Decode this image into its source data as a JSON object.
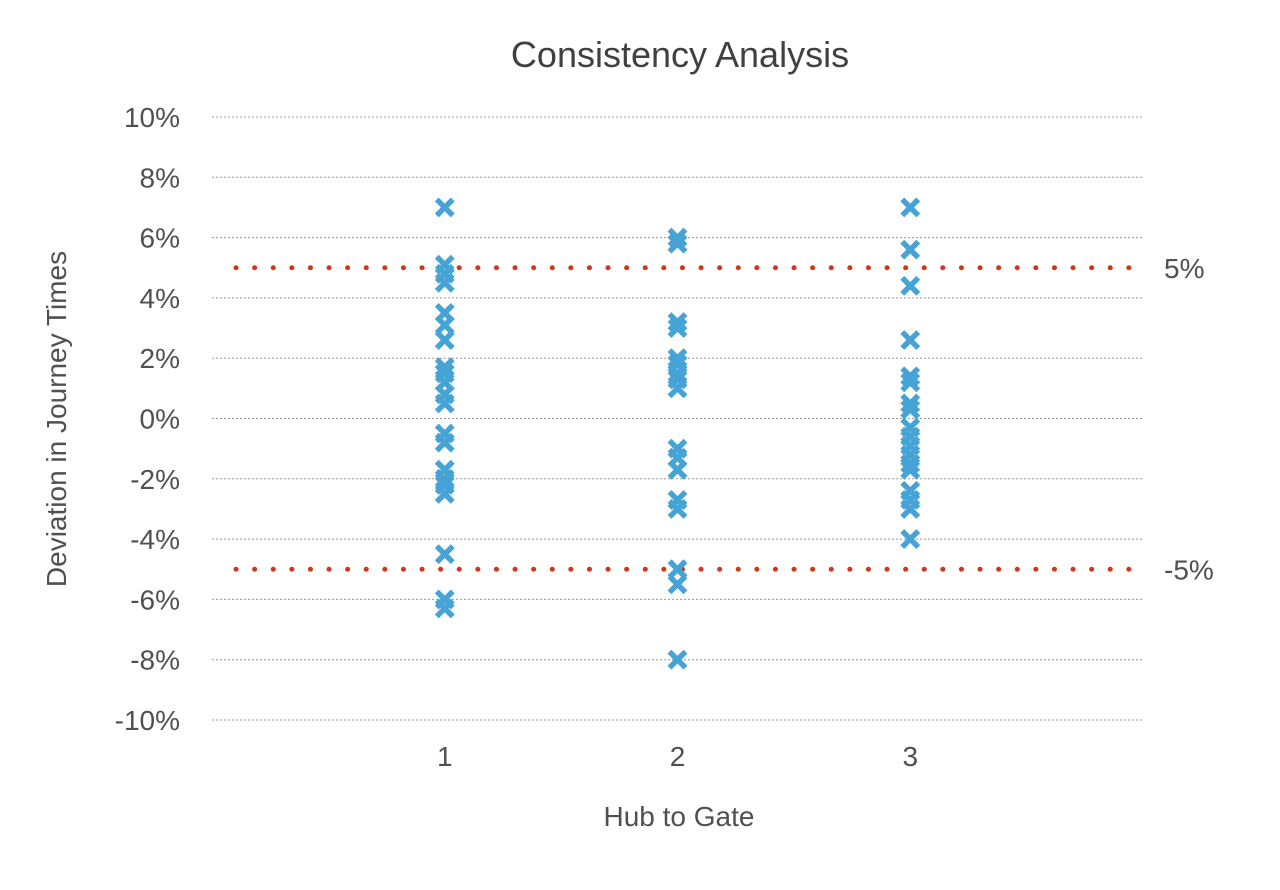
{
  "chart_data": {
    "type": "scatter",
    "title": "Consistency Analysis",
    "xlabel": "Hub to Gate",
    "ylabel": "Deviation in Journey Times",
    "xlim": [
      0,
      4
    ],
    "ylim": [
      -10,
      10
    ],
    "x_ticks": [
      "1",
      "2",
      "3"
    ],
    "y_ticks": [
      "10%",
      "8%",
      "6%",
      "4%",
      "2%",
      "0%",
      "-2%",
      "-4%",
      "-6%",
      "-8%",
      "-10%"
    ],
    "grid": true,
    "marker_color": "#46a3d6",
    "reference_color": "#cc3a1e",
    "reference_lines": [
      {
        "y": 5,
        "label": "5%"
      },
      {
        "y": -5,
        "label": "-5%"
      }
    ],
    "points": [
      {
        "x": 1,
        "y": 7.0
      },
      {
        "x": 1,
        "y": 5.1
      },
      {
        "x": 1,
        "y": 4.8
      },
      {
        "x": 1,
        "y": 4.5
      },
      {
        "x": 1,
        "y": 3.5
      },
      {
        "x": 1,
        "y": 3.1
      },
      {
        "x": 1,
        "y": 2.6
      },
      {
        "x": 1,
        "y": 1.7
      },
      {
        "x": 1,
        "y": 1.5
      },
      {
        "x": 1,
        "y": 1.2
      },
      {
        "x": 1,
        "y": 0.8
      },
      {
        "x": 1,
        "y": 0.5
      },
      {
        "x": 1,
        "y": -0.5
      },
      {
        "x": 1,
        "y": -0.8
      },
      {
        "x": 1,
        "y": -1.7
      },
      {
        "x": 1,
        "y": -2.0
      },
      {
        "x": 1,
        "y": -2.2
      },
      {
        "x": 1,
        "y": -2.5
      },
      {
        "x": 1,
        "y": -4.5
      },
      {
        "x": 1,
        "y": -6.0
      },
      {
        "x": 1,
        "y": -6.3
      },
      {
        "x": 2,
        "y": 6.0
      },
      {
        "x": 2,
        "y": 5.8
      },
      {
        "x": 2,
        "y": 3.2
      },
      {
        "x": 2,
        "y": 3.0
      },
      {
        "x": 2,
        "y": 2.0
      },
      {
        "x": 2,
        "y": 1.8
      },
      {
        "x": 2,
        "y": 1.5
      },
      {
        "x": 2,
        "y": 1.3
      },
      {
        "x": 2,
        "y": 1.0
      },
      {
        "x": 2,
        "y": -1.0
      },
      {
        "x": 2,
        "y": -1.3
      },
      {
        "x": 2,
        "y": -1.7
      },
      {
        "x": 2,
        "y": -2.7
      },
      {
        "x": 2,
        "y": -3.0
      },
      {
        "x": 2,
        "y": -5.0
      },
      {
        "x": 2,
        "y": -5.5
      },
      {
        "x": 2,
        "y": -8.0
      },
      {
        "x": 3,
        "y": 7.0
      },
      {
        "x": 3,
        "y": 5.6
      },
      {
        "x": 3,
        "y": 4.4
      },
      {
        "x": 3,
        "y": 2.6
      },
      {
        "x": 3,
        "y": 1.4
      },
      {
        "x": 3,
        "y": 1.2
      },
      {
        "x": 3,
        "y": 0.5
      },
      {
        "x": 3,
        "y": 0.3
      },
      {
        "x": 3,
        "y": -0.3
      },
      {
        "x": 3,
        "y": -0.6
      },
      {
        "x": 3,
        "y": -0.9
      },
      {
        "x": 3,
        "y": -1.2
      },
      {
        "x": 3,
        "y": -1.5
      },
      {
        "x": 3,
        "y": -1.7
      },
      {
        "x": 3,
        "y": -2.4
      },
      {
        "x": 3,
        "y": -2.7
      },
      {
        "x": 3,
        "y": -3.0
      },
      {
        "x": 3,
        "y": -4.0
      }
    ]
  }
}
